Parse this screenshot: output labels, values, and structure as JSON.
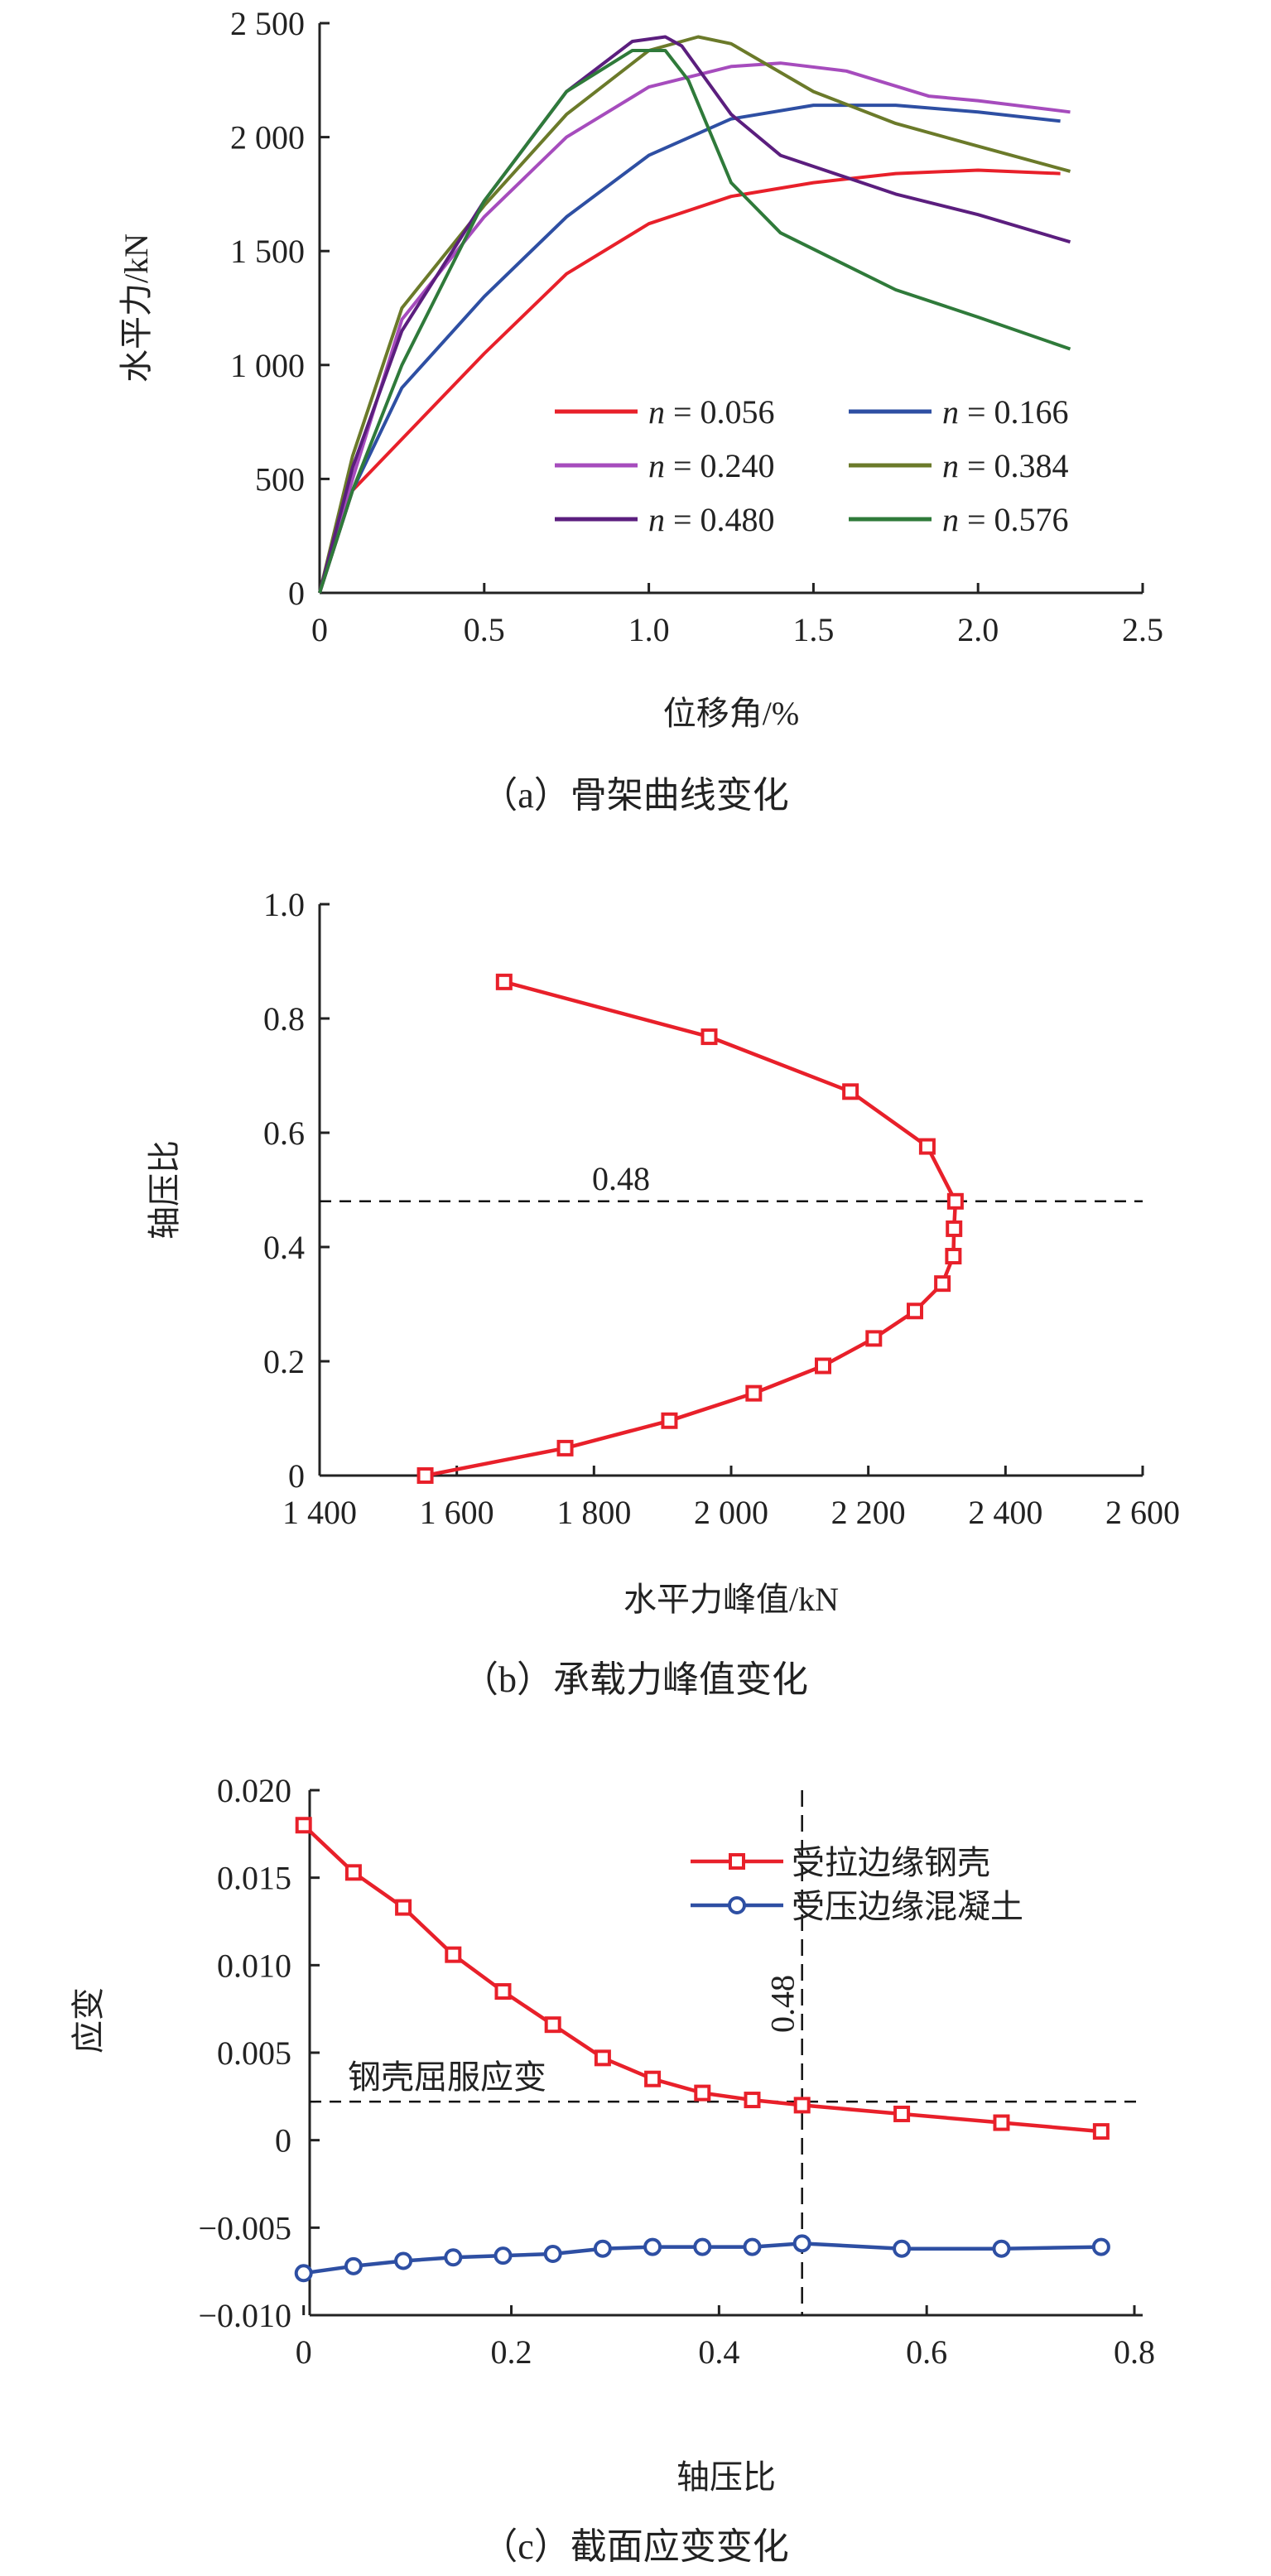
{
  "colors": {
    "red": "#e8202a",
    "blue": "#2e4fa3",
    "purple": "#a64cbd",
    "olive": "#6b7a2a",
    "indigo": "#5b1e7e",
    "green": "#2f7a3a",
    "axis": "#222222"
  },
  "chart_data": [
    {
      "type": "line",
      "caption": "（a）骨架曲线变化",
      "xlabel": "位移角/%",
      "ylabel": "水平力/kN",
      "xlim": [
        0,
        2.5
      ],
      "ylim": [
        0,
        2500
      ],
      "xticks": [
        0,
        0.5,
        1.0,
        1.5,
        2.0,
        2.5
      ],
      "xtick_labels": [
        "0",
        "0.5",
        "1.0",
        "1.5",
        "2.0",
        "2.5"
      ],
      "yticks": [
        0,
        500,
        1000,
        1500,
        2000,
        2500
      ],
      "ytick_labels": [
        "0",
        "500",
        "1 000",
        "1 500",
        "2 000",
        "2 500"
      ],
      "legend_position": "lower-right",
      "series": [
        {
          "name": "n = 0.056",
          "n": "0.056",
          "color": "red",
          "x": [
            0,
            0.1,
            0.3,
            0.5,
            0.75,
            1.0,
            1.25,
            1.5,
            1.75,
            2.0,
            2.25
          ],
          "y": [
            0,
            450,
            750,
            1050,
            1400,
            1620,
            1740,
            1800,
            1840,
            1855,
            1840
          ]
        },
        {
          "name": "n = 0.166",
          "n": "0.166",
          "color": "blue",
          "x": [
            0,
            0.1,
            0.25,
            0.5,
            0.75,
            1.0,
            1.25,
            1.5,
            1.75,
            2.0,
            2.25
          ],
          "y": [
            0,
            450,
            900,
            1300,
            1650,
            1920,
            2080,
            2140,
            2140,
            2110,
            2070
          ]
        },
        {
          "name": "n = 0.240",
          "n": "0.240",
          "color": "purple",
          "x": [
            0,
            0.1,
            0.25,
            0.5,
            0.75,
            1.0,
            1.25,
            1.4,
            1.6,
            1.85,
            2.0,
            2.28
          ],
          "y": [
            0,
            500,
            1200,
            1650,
            2000,
            2220,
            2310,
            2325,
            2290,
            2180,
            2160,
            2110
          ]
        },
        {
          "name": "n = 0.384",
          "n": "0.384",
          "color": "olive",
          "x": [
            0,
            0.1,
            0.25,
            0.5,
            0.75,
            1.0,
            1.15,
            1.25,
            1.5,
            1.75,
            2.0,
            2.28
          ],
          "y": [
            0,
            600,
            1250,
            1700,
            2100,
            2380,
            2440,
            2410,
            2200,
            2060,
            1960,
            1850
          ]
        },
        {
          "name": "n = 0.480",
          "n": "0.480",
          "color": "indigo",
          "x": [
            0,
            0.1,
            0.25,
            0.5,
            0.75,
            0.95,
            1.05,
            1.1,
            1.25,
            1.4,
            1.75,
            2.0,
            2.28
          ],
          "y": [
            0,
            550,
            1150,
            1720,
            2200,
            2420,
            2440,
            2400,
            2100,
            1920,
            1750,
            1660,
            1540
          ]
        },
        {
          "name": "n = 0.576",
          "n": "0.576",
          "color": "green",
          "x": [
            0,
            0.1,
            0.25,
            0.5,
            0.75,
            0.95,
            1.05,
            1.12,
            1.25,
            1.4,
            1.75,
            2.0,
            2.28
          ],
          "y": [
            0,
            450,
            1000,
            1720,
            2200,
            2380,
            2380,
            2250,
            1800,
            1580,
            1330,
            1210,
            1070
          ]
        }
      ]
    },
    {
      "type": "line",
      "caption": "（b）承载力峰值变化",
      "xlabel": "水平力峰值/kN",
      "ylabel": "轴压比",
      "xlim": [
        1400,
        2600
      ],
      "ylim": [
        0,
        1.0
      ],
      "xticks": [
        1400,
        1600,
        1800,
        2000,
        2200,
        2400,
        2600
      ],
      "xtick_labels": [
        "1 400",
        "1 600",
        "1 800",
        "2 000",
        "2 200",
        "2 400",
        "2 600"
      ],
      "yticks": [
        0,
        0.2,
        0.4,
        0.6,
        0.8,
        1.0
      ],
      "ytick_labels": [
        "0",
        "0.2",
        "0.4",
        "0.6",
        "0.8",
        "1.0"
      ],
      "reference_line": {
        "y": 0.48,
        "label": "0.48"
      },
      "series": [
        {
          "name": "peak",
          "color": "red",
          "marker": "square",
          "x": [
            1554,
            1758,
            1910,
            2033,
            2134,
            2208,
            2268,
            2308,
            2324,
            2325,
            2327,
            2286,
            2174,
            1968,
            1669
          ],
          "y": [
            0,
            0.048,
            0.096,
            0.144,
            0.192,
            0.24,
            0.288,
            0.336,
            0.384,
            0.432,
            0.48,
            0.576,
            0.672,
            0.768,
            0.864
          ]
        }
      ]
    },
    {
      "type": "line",
      "caption": "（c）截面应变变化",
      "xlabel": "轴压比",
      "ylabel": "应变",
      "xlim": [
        -0.05,
        0.8
      ],
      "ylim": [
        -0.01,
        0.02
      ],
      "xticks": [
        0,
        0.2,
        0.4,
        0.6,
        0.8
      ],
      "xtick_labels": [
        "0",
        "0.2",
        "0.4",
        "0.6",
        "0.8"
      ],
      "yticks": [
        -0.01,
        -0.005,
        0,
        0.005,
        0.01,
        0.015,
        0.02
      ],
      "ytick_labels": [
        "−0.010",
        "−0.005",
        "0",
        "0.005",
        "0.010",
        "0.015",
        "0.020"
      ],
      "reference_hline": {
        "y": 0.0022,
        "label": "钢壳屈服应变"
      },
      "reference_vline": {
        "x": 0.48,
        "label": "0.48"
      },
      "legend_position": "top-right",
      "series": [
        {
          "name": "受拉边缘钢壳",
          "color": "red",
          "marker": "square",
          "x": [
            0,
            0.048,
            0.096,
            0.144,
            0.192,
            0.24,
            0.288,
            0.336,
            0.384,
            0.432,
            0.48,
            0.576,
            0.672,
            0.768
          ],
          "y": [
            0.018,
            0.0153,
            0.0133,
            0.0106,
            0.0085,
            0.0066,
            0.0047,
            0.0035,
            0.0027,
            0.0023,
            0.002,
            0.0015,
            0.001,
            0.0005
          ]
        },
        {
          "name": "受压边缘混凝土",
          "color": "blue",
          "marker": "circle",
          "x": [
            0,
            0.048,
            0.096,
            0.144,
            0.192,
            0.24,
            0.288,
            0.336,
            0.384,
            0.432,
            0.48,
            0.576,
            0.672,
            0.768
          ],
          "y": [
            -0.0076,
            -0.0072,
            -0.0069,
            -0.0067,
            -0.0066,
            -0.0065,
            -0.0062,
            -0.0061,
            -0.0061,
            -0.0061,
            -0.0059,
            -0.0062,
            -0.0062,
            -0.0061
          ]
        }
      ]
    }
  ]
}
